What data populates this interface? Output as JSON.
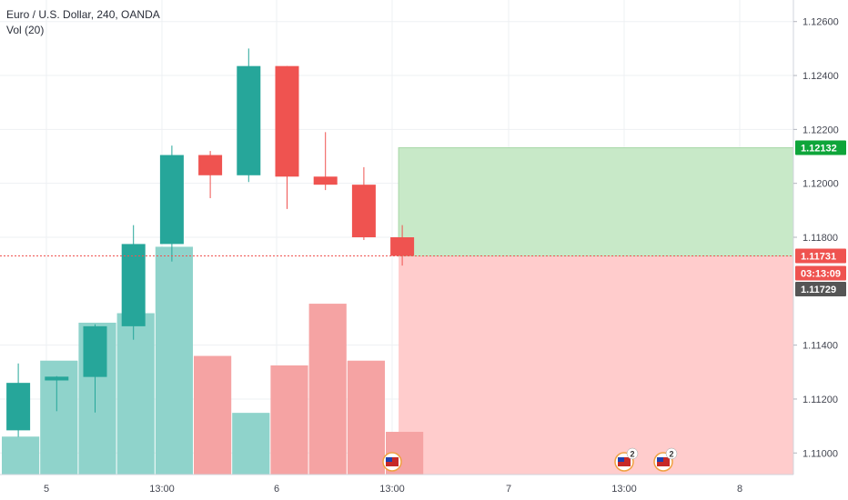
{
  "symbol_title": "Euro / U.S. Dollar, 240, OANDA",
  "volume_label": "Vol (20)",
  "colors": {
    "up": "#26a69a",
    "down": "#ef5350",
    "vol_up": "#8fd3cb",
    "vol_down": "#f5a3a3",
    "profit_zone": "#c8e9c8",
    "loss_zone": "#ffcccc",
    "grid": "#eef0f3",
    "axis_text": "#434651",
    "target_badge": "#0ea53a",
    "current_badge": "#ef5350",
    "entry_badge": "#555555"
  },
  "chart_data": {
    "type": "candlestick",
    "y_axis": {
      "ticks": [
        "1.12600",
        "1.12400",
        "1.12200",
        "1.12000",
        "1.11800",
        "1.11400",
        "1.11200",
        "1.11000"
      ],
      "range": [
        1.1092,
        1.1268
      ]
    },
    "x_axis": {
      "ticks": [
        "5",
        "13:00",
        "6",
        "13:00",
        "7",
        "13:00",
        "8"
      ]
    },
    "candles": [
      {
        "o": 1.11084,
        "h": 1.11332,
        "l": 1.1106,
        "c": 1.1126
      },
      {
        "o": 1.11269,
        "h": 1.11285,
        "l": 1.11155,
        "c": 1.11283
      },
      {
        "o": 1.11282,
        "h": 1.11477,
        "l": 1.1115,
        "c": 1.1147
      },
      {
        "o": 1.1147,
        "h": 1.11845,
        "l": 1.1142,
        "c": 1.11775
      },
      {
        "o": 1.11775,
        "h": 1.1214,
        "l": 1.1171,
        "c": 1.12105
      },
      {
        "o": 1.12105,
        "h": 1.1212,
        "l": 1.11945,
        "c": 1.1203
      },
      {
        "o": 1.1203,
        "h": 1.125,
        "l": 1.12005,
        "c": 1.12435
      },
      {
        "o": 1.12435,
        "h": 1.12435,
        "l": 1.11905,
        "c": 1.12025
      },
      {
        "o": 1.12025,
        "h": 1.1219,
        "l": 1.11975,
        "c": 1.11995
      },
      {
        "o": 1.11995,
        "h": 1.1206,
        "l": 1.1179,
        "c": 1.118
      },
      {
        "o": 1.118,
        "h": 1.11845,
        "l": 1.11695,
        "c": 1.11731
      }
    ],
    "volume": [
      0.08,
      0.24,
      0.32,
      0.34,
      0.48,
      0.25,
      0.13,
      0.23,
      0.36,
      0.24,
      0.09
    ],
    "position": {
      "entry": 1.11729,
      "target": 1.12132,
      "stop_below_visible": true
    },
    "price_labels": {
      "target": "1.12132",
      "current": "1.11731",
      "countdown": "03:13:09",
      "entry": "1.11729"
    },
    "events": [
      {
        "type": "us-flag-event",
        "count": ""
      },
      {
        "type": "us-flag-event",
        "count": "2"
      },
      {
        "type": "us-flag-event",
        "count": "2"
      }
    ]
  }
}
